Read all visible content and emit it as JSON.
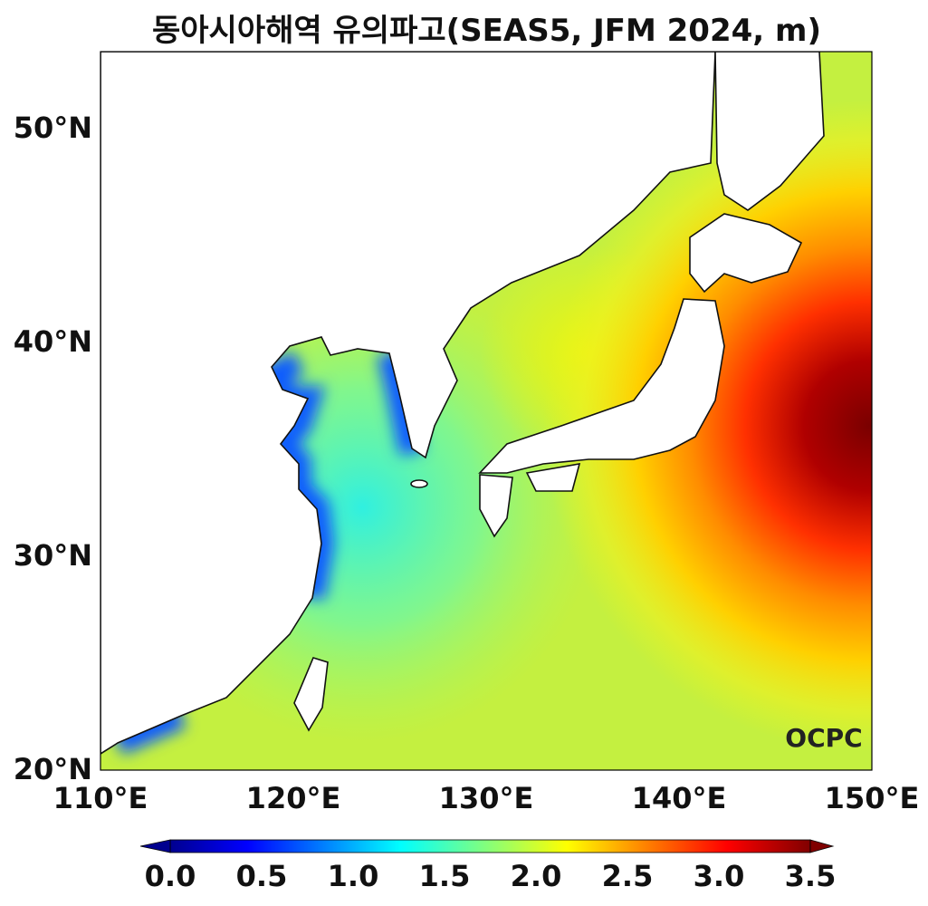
{
  "title": "동아시아해역 유의파고(SEAS5, JFM 2024, m)",
  "map": {
    "lon_range": [
      110,
      150
    ],
    "lat_range": [
      20,
      53.5
    ],
    "variable": "significant wave height",
    "units": "m",
    "lat_ticks": [
      "20°N",
      "30°N",
      "40°N",
      "50°N"
    ],
    "lon_ticks": [
      "110°E",
      "120°E",
      "130°E",
      "140°E",
      "150°E"
    ],
    "logo": "OCPC"
  },
  "colorbar": {
    "colormap": "jet",
    "range": [
      0.0,
      3.5
    ],
    "extend": "both",
    "ticks": [
      "0.0",
      "0.5",
      "1.0",
      "1.5",
      "2.0",
      "2.5",
      "3.0",
      "3.5"
    ]
  }
}
